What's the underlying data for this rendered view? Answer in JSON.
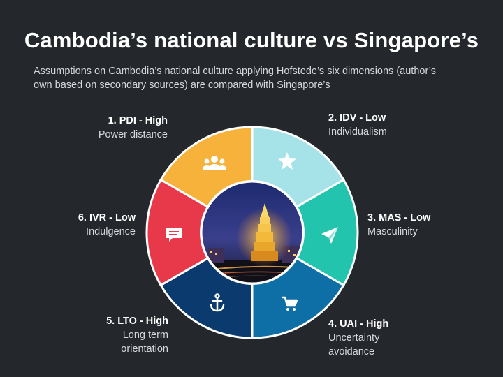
{
  "title": "Cambodia’s national culture vs Singapore’s",
  "subtitle": "Assumptions on Cambodia’s national culture applying Hofstede’s six dimensions (author’s own based on secondary sources) are compared with Singapore’s",
  "dimensions": [
    {
      "heading": "1. PDI - High",
      "description": "Power distance",
      "color": "#f7b23b",
      "icon": "users-icon"
    },
    {
      "heading": "2. IDV - Low",
      "description": "Individualism",
      "color": "#a6e3e9",
      "icon": "star-icon"
    },
    {
      "heading": "3. MAS - Low",
      "description": "Masculinity",
      "color": "#23c4ad",
      "icon": "paper-plane-icon"
    },
    {
      "heading": "4. UAI - High",
      "description_line1": "Uncertainty",
      "description_line2": "avoidance",
      "color": "#0e6ea6",
      "icon": "shopping-cart-icon"
    },
    {
      "heading": "5. LTO - High",
      "description_line1": "Long term",
      "description_line2": "orientation",
      "color": "#0b3b6e",
      "icon": "anchor-icon"
    },
    {
      "heading": "6. IVR - Low",
      "description": "Indulgence",
      "color": "#e8394a",
      "icon": "chat-bubble-icon"
    }
  ],
  "center_image": "independence-monument-night-photo"
}
